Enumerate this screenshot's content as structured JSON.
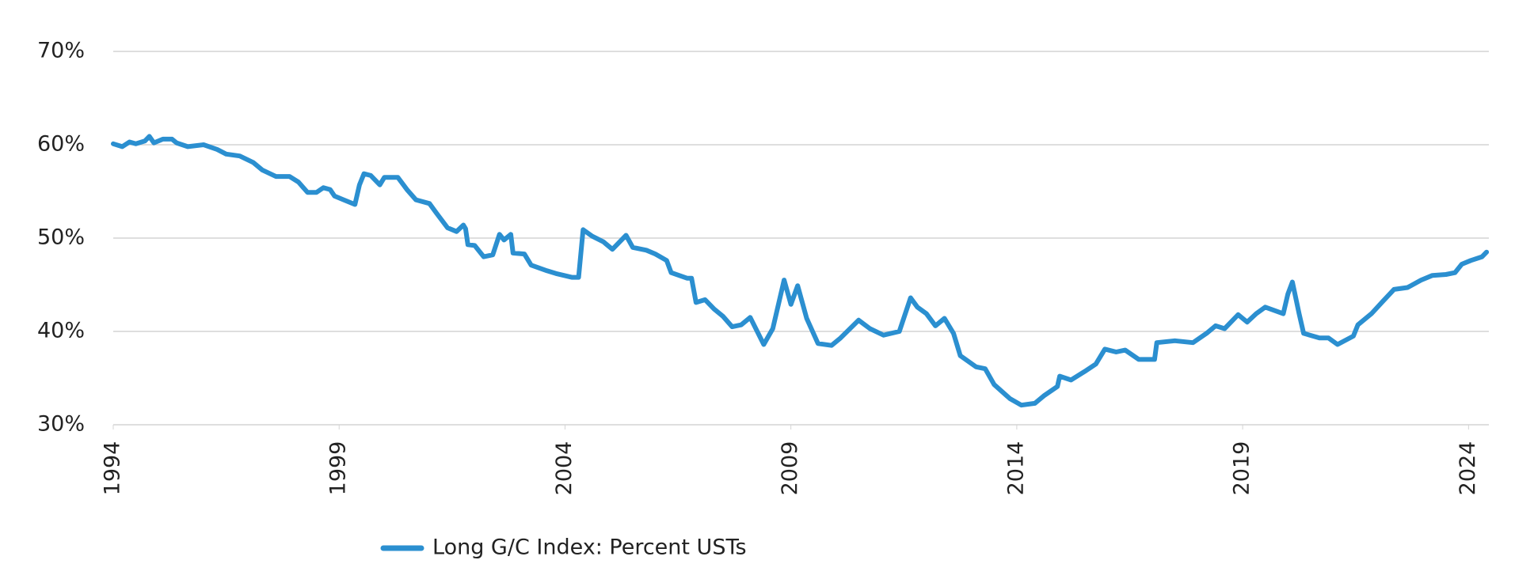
{
  "chart_data": {
    "type": "line",
    "x": [
      1994.0,
      1994.2,
      1994.36,
      1994.5,
      1994.7,
      1994.8,
      1994.9,
      1995.1,
      1995.3,
      1995.4,
      1995.65,
      1996.0,
      1996.3,
      1996.5,
      1996.8,
      1997.1,
      1997.3,
      1997.6,
      1997.9,
      1998.1,
      1998.3,
      1998.5,
      1998.65,
      1998.8,
      1998.9,
      1999.1,
      1999.35,
      1999.45,
      1999.55,
      1999.7,
      1999.9,
      2000.0,
      2000.3,
      2000.5,
      2000.7,
      2001.0,
      2001.15,
      2001.4,
      2001.6,
      2001.75,
      2001.8,
      2001.85,
      2002.0,
      2002.2,
      2002.4,
      2002.55,
      2002.65,
      2002.8,
      2002.85,
      2003.1,
      2003.25,
      2003.6,
      2003.8,
      2004.15,
      2004.3,
      2004.4,
      2004.6,
      2004.85,
      2005.05,
      2005.35,
      2005.5,
      2005.8,
      2006.0,
      2006.25,
      2006.35,
      2006.7,
      2006.8,
      2006.9,
      2007.1,
      2007.3,
      2007.5,
      2007.7,
      2007.9,
      2008.1,
      2008.4,
      2008.6,
      2008.85,
      2009.0,
      2009.15,
      2009.35,
      2009.6,
      2009.9,
      2010.1,
      2010.5,
      2010.75,
      2011.05,
      2011.4,
      2011.65,
      2011.8,
      2012.0,
      2012.2,
      2012.4,
      2012.6,
      2012.75,
      2013.1,
      2013.3,
      2013.5,
      2013.85,
      2014.1,
      2014.4,
      2014.6,
      2014.9,
      2014.95,
      2015.2,
      2015.5,
      2015.75,
      2015.95,
      2016.2,
      2016.4,
      2016.7,
      2017.05,
      2017.1,
      2017.5,
      2017.9,
      2018.2,
      2018.4,
      2018.6,
      2018.9,
      2019.1,
      2019.3,
      2019.5,
      2019.9,
      2020.0,
      2020.1,
      2020.25,
      2020.35,
      2020.7,
      2020.9,
      2021.1,
      2021.45,
      2021.55,
      2021.85,
      2022.1,
      2022.35,
      2022.65,
      2022.95,
      2023.2,
      2023.5,
      2023.7,
      2023.85,
      2024.05,
      2024.3,
      2024.4
    ],
    "series": [
      {
        "name": "Long G/C Index: Percent USTs",
        "color": "#2b8fd0",
        "values": [
          60.1,
          59.8,
          60.3,
          60.1,
          60.4,
          60.9,
          60.2,
          60.6,
          60.6,
          60.2,
          59.8,
          60,
          59.5,
          59,
          58.8,
          58.1,
          57.3,
          56.6,
          56.6,
          56,
          54.9,
          54.9,
          55.4,
          55.2,
          54.5,
          54.1,
          53.6,
          55.7,
          56.9,
          56.7,
          55.7,
          56.5,
          56.5,
          55.2,
          54.1,
          53.7,
          52.7,
          51.1,
          50.7,
          51.4,
          51,
          49.3,
          49.2,
          48,
          48.2,
          50.4,
          49.8,
          50.4,
          48.4,
          48.3,
          47.1,
          46.5,
          46.2,
          45.8,
          45.8,
          50.9,
          50.2,
          49.6,
          48.8,
          50.3,
          49,
          48.7,
          48.3,
          47.6,
          46.3,
          45.7,
          45.7,
          43.1,
          43.4,
          42.4,
          41.6,
          40.5,
          40.7,
          41.5,
          38.6,
          40.3,
          45.5,
          42.9,
          44.9,
          41.4,
          38.7,
          38.5,
          39.3,
          41.2,
          40.3,
          39.6,
          40,
          43.6,
          42.6,
          41.9,
          40.6,
          41.4,
          39.8,
          37.4,
          36.2,
          36,
          34.3,
          32.8,
          32.1,
          32.3,
          33.1,
          34.1,
          35.2,
          34.8,
          35.7,
          36.5,
          38.1,
          37.8,
          38,
          37,
          37,
          38.8,
          39,
          38.8,
          39.8,
          40.6,
          40.3,
          41.8,
          41,
          41.9,
          42.6,
          41.9,
          44,
          45.3,
          41.9,
          39.8,
          39.3,
          39.3,
          38.6,
          39.5,
          40.7,
          41.9,
          43.2,
          44.5,
          44.7,
          45.5,
          46,
          46.1,
          46.3,
          47.2,
          47.6,
          48,
          48.5
        ]
      }
    ],
    "xlim": [
      1994,
      2024.45
    ],
    "xticks": [
      1994,
      1999,
      2004,
      2009,
      2014,
      2019,
      2024
    ],
    "ylim": [
      30,
      70
    ],
    "yticks": [
      {
        "value": 30,
        "label": "30%"
      },
      {
        "value": 40,
        "label": "40%"
      },
      {
        "value": 50,
        "label": "50%"
      },
      {
        "value": 60,
        "label": "60%"
      },
      {
        "value": 70,
        "label": "70%"
      }
    ],
    "grid": true
  }
}
